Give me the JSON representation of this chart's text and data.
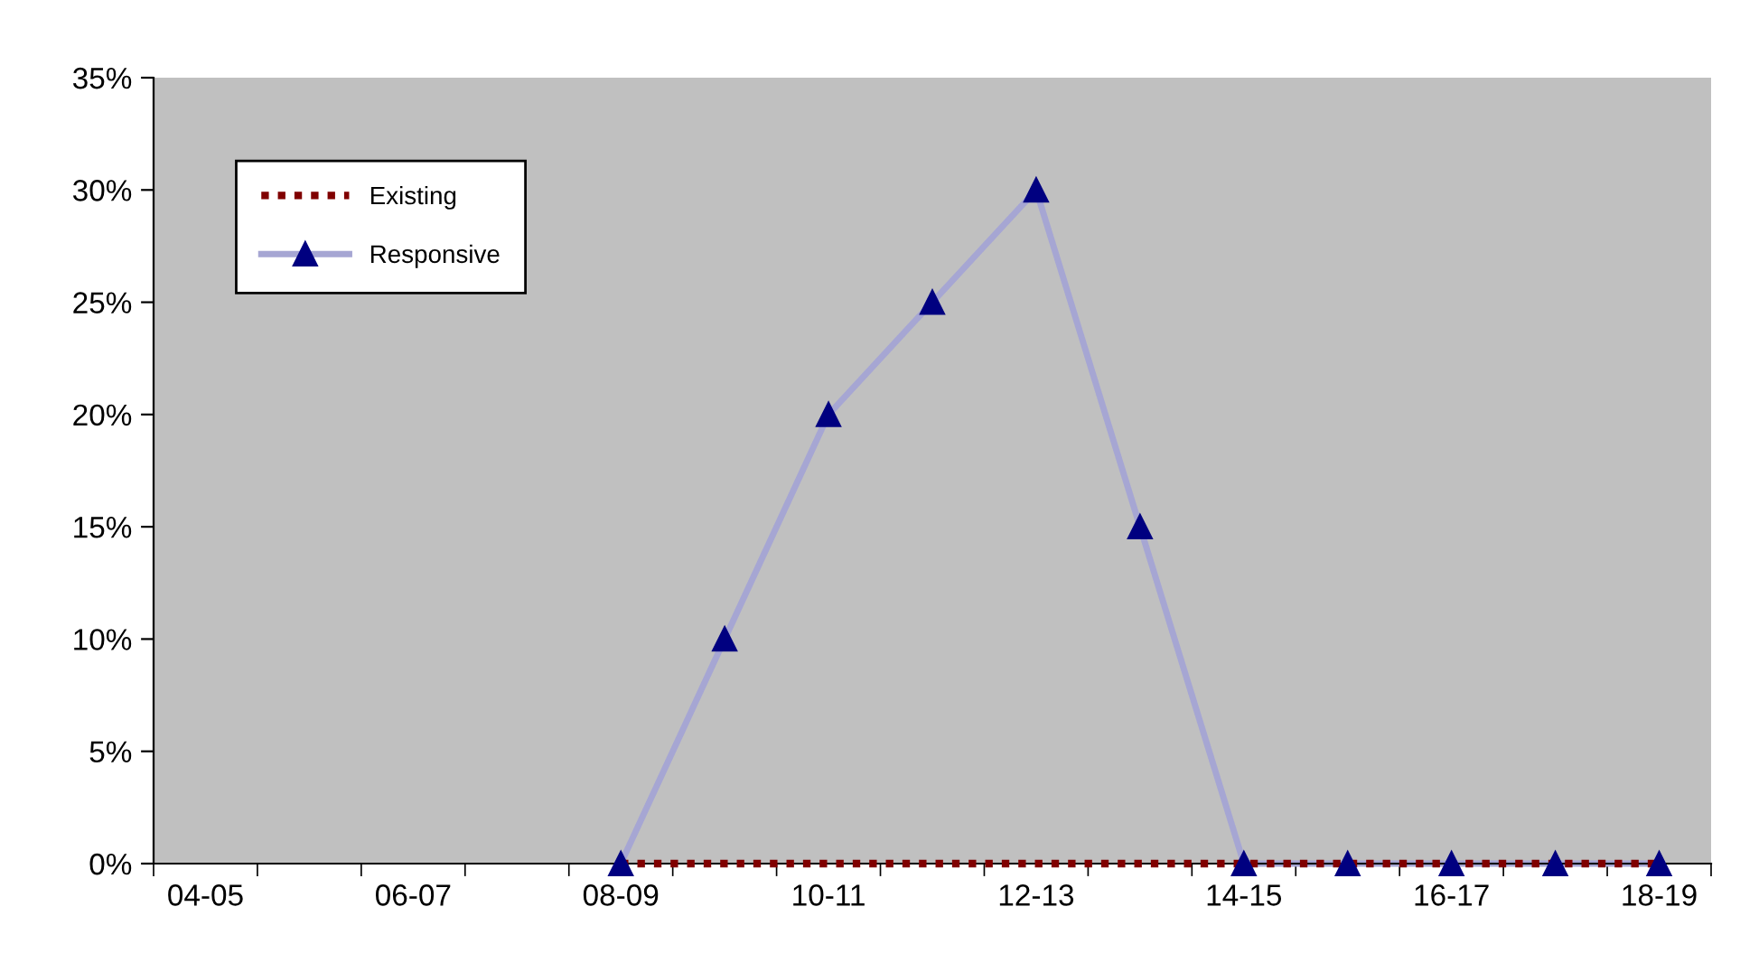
{
  "chart_data": {
    "type": "line",
    "categories": [
      "04-05",
      null,
      "06-07",
      null,
      "08-09",
      null,
      "10-11",
      null,
      "12-13",
      null,
      "14-15",
      null,
      "16-17",
      null,
      "18-19"
    ],
    "series": [
      {
        "name": "Existing",
        "color": "#800000",
        "line_style": "dotted",
        "marker": "none",
        "values": [
          null,
          null,
          null,
          null,
          0,
          0,
          0,
          0,
          0,
          0,
          0,
          0,
          0,
          0,
          0
        ]
      },
      {
        "name": "Responsive",
        "color": "#000080",
        "line_style": "solid",
        "marker": "triangle",
        "values": [
          null,
          null,
          null,
          null,
          0,
          10,
          20,
          25,
          30,
          15,
          0,
          0,
          0,
          0,
          0
        ]
      }
    ],
    "ylim": [
      0,
      35
    ],
    "yticks": [
      {
        "value": 0,
        "label": "0%"
      },
      {
        "value": 5,
        "label": "5%"
      },
      {
        "value": 10,
        "label": "10%"
      },
      {
        "value": 15,
        "label": "15%"
      },
      {
        "value": 20,
        "label": "20%"
      },
      {
        "value": 25,
        "label": "25%"
      },
      {
        "value": 30,
        "label": "30%"
      },
      {
        "value": 35,
        "label": "35%"
      }
    ],
    "grid": false,
    "legend": "top left"
  }
}
